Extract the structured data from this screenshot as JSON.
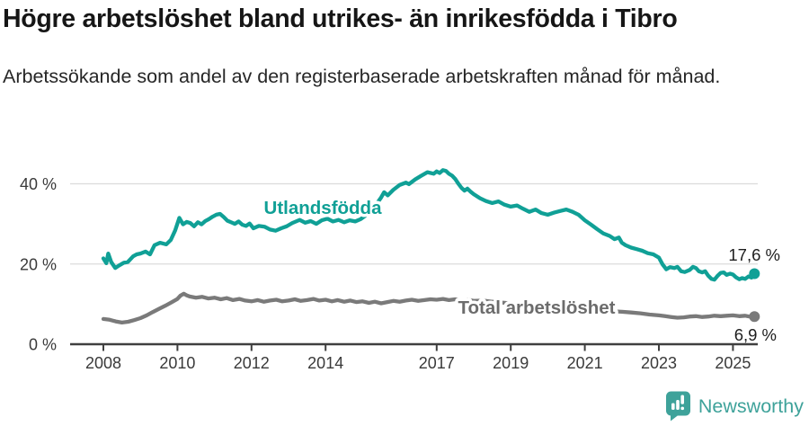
{
  "header": {
    "title": "Högre arbetslöshet bland utrikes- än inrikesfödda i Tibro",
    "subtitle": "Arbetssökande som andel av den registerbaserade arbetskraften månad för månad."
  },
  "colors": {
    "teal_line": "#10A096",
    "gray_line": "#7A7A7A",
    "gray_label": "#6C6C6C",
    "grid": "#DBDBDB",
    "axis": "#3F3F3F",
    "tick_text": "#3A3A3A",
    "value_text": "#1D1D1D",
    "logo_teal": "#3EA29A",
    "background": "#FFFFFF"
  },
  "chart_data": {
    "type": "line",
    "title": "Högre arbetslöshet bland utrikes- än inrikesfödda i Tibro",
    "xlabel": "",
    "ylabel": "",
    "x_ticks": [
      2008,
      2010,
      2012,
      2014,
      2017,
      2019,
      2021,
      2023,
      2025
    ],
    "y_ticks": [
      0,
      20,
      40
    ],
    "y_tick_suffix": " %",
    "xlim": [
      2007.1,
      2026.1
    ],
    "ylim": [
      0,
      45
    ],
    "grid": "horizontal",
    "legend_position": "inline-labels",
    "series": [
      {
        "name": "Utlandsfödda",
        "color": "#10A096",
        "end_label": "17,6 %",
        "end_value": 17.6,
        "points": [
          [
            2008.0,
            21.4
          ],
          [
            2008.08,
            20.2
          ],
          [
            2008.13,
            22.6
          ],
          [
            2008.21,
            20.5
          ],
          [
            2008.32,
            19.0
          ],
          [
            2008.42,
            19.6
          ],
          [
            2008.55,
            20.3
          ],
          [
            2008.66,
            20.5
          ],
          [
            2008.8,
            21.9
          ],
          [
            2008.9,
            22.4
          ],
          [
            2009.0,
            22.6
          ],
          [
            2009.14,
            23.1
          ],
          [
            2009.26,
            22.4
          ],
          [
            2009.38,
            24.7
          ],
          [
            2009.53,
            25.3
          ],
          [
            2009.7,
            24.9
          ],
          [
            2009.82,
            26.0
          ],
          [
            2009.94,
            28.4
          ],
          [
            2010.05,
            31.5
          ],
          [
            2010.15,
            29.9
          ],
          [
            2010.25,
            30.5
          ],
          [
            2010.35,
            30.2
          ],
          [
            2010.45,
            29.4
          ],
          [
            2010.55,
            30.4
          ],
          [
            2010.65,
            29.9
          ],
          [
            2010.75,
            30.7
          ],
          [
            2010.85,
            31.2
          ],
          [
            2010.95,
            31.8
          ],
          [
            2011.05,
            32.3
          ],
          [
            2011.15,
            32.5
          ],
          [
            2011.25,
            31.7
          ],
          [
            2011.35,
            30.8
          ],
          [
            2011.45,
            30.4
          ],
          [
            2011.55,
            30.0
          ],
          [
            2011.65,
            30.6
          ],
          [
            2011.75,
            29.8
          ],
          [
            2011.85,
            29.5
          ],
          [
            2011.95,
            30.1
          ],
          [
            2012.05,
            28.9
          ],
          [
            2012.2,
            29.5
          ],
          [
            2012.35,
            29.3
          ],
          [
            2012.5,
            28.6
          ],
          [
            2012.65,
            28.3
          ],
          [
            2012.8,
            28.9
          ],
          [
            2012.95,
            29.4
          ],
          [
            2013.1,
            30.2
          ],
          [
            2013.3,
            31.0
          ],
          [
            2013.45,
            30.3
          ],
          [
            2013.6,
            30.7
          ],
          [
            2013.75,
            30.0
          ],
          [
            2013.9,
            30.9
          ],
          [
            2014.05,
            31.3
          ],
          [
            2014.2,
            30.6
          ],
          [
            2014.35,
            31.0
          ],
          [
            2014.5,
            30.4
          ],
          [
            2014.65,
            30.9
          ],
          [
            2014.8,
            30.6
          ],
          [
            2014.95,
            31.2
          ],
          [
            2015.1,
            32.2
          ],
          [
            2015.25,
            33.6
          ],
          [
            2015.4,
            35.3
          ],
          [
            2015.5,
            36.6
          ],
          [
            2015.58,
            37.9
          ],
          [
            2015.68,
            37.1
          ],
          [
            2015.83,
            38.5
          ],
          [
            2016.0,
            39.7
          ],
          [
            2016.17,
            40.3
          ],
          [
            2016.25,
            39.9
          ],
          [
            2016.42,
            41.1
          ],
          [
            2016.58,
            42.0
          ],
          [
            2016.75,
            42.9
          ],
          [
            2016.92,
            42.5
          ],
          [
            2017.0,
            43.1
          ],
          [
            2017.08,
            42.7
          ],
          [
            2017.17,
            43.4
          ],
          [
            2017.25,
            43.2
          ],
          [
            2017.33,
            42.5
          ],
          [
            2017.42,
            42.0
          ],
          [
            2017.5,
            41.2
          ],
          [
            2017.58,
            40.1
          ],
          [
            2017.67,
            39.0
          ],
          [
            2017.75,
            38.3
          ],
          [
            2017.83,
            38.8
          ],
          [
            2017.92,
            38.0
          ],
          [
            2018.0,
            37.4
          ],
          [
            2018.17,
            36.4
          ],
          [
            2018.33,
            35.7
          ],
          [
            2018.5,
            35.2
          ],
          [
            2018.67,
            35.6
          ],
          [
            2018.83,
            34.8
          ],
          [
            2019.0,
            34.3
          ],
          [
            2019.17,
            34.6
          ],
          [
            2019.33,
            33.8
          ],
          [
            2019.5,
            33.0
          ],
          [
            2019.67,
            33.6
          ],
          [
            2019.83,
            32.7
          ],
          [
            2020.0,
            32.3
          ],
          [
            2020.17,
            32.8
          ],
          [
            2020.33,
            33.2
          ],
          [
            2020.5,
            33.6
          ],
          [
            2020.67,
            33.0
          ],
          [
            2020.83,
            32.3
          ],
          [
            2021.0,
            30.9
          ],
          [
            2021.17,
            29.8
          ],
          [
            2021.33,
            28.7
          ],
          [
            2021.5,
            27.6
          ],
          [
            2021.67,
            27.0
          ],
          [
            2021.8,
            26.2
          ],
          [
            2021.92,
            26.6
          ],
          [
            2022.0,
            25.3
          ],
          [
            2022.1,
            24.7
          ],
          [
            2022.25,
            24.1
          ],
          [
            2022.4,
            23.7
          ],
          [
            2022.55,
            23.3
          ],
          [
            2022.7,
            22.7
          ],
          [
            2022.85,
            22.4
          ],
          [
            2023.0,
            21.6
          ],
          [
            2023.1,
            19.9
          ],
          [
            2023.2,
            18.7
          ],
          [
            2023.3,
            19.2
          ],
          [
            2023.42,
            19.0
          ],
          [
            2023.5,
            19.3
          ],
          [
            2023.6,
            18.2
          ],
          [
            2023.7,
            18.0
          ],
          [
            2023.83,
            18.5
          ],
          [
            2023.92,
            19.3
          ],
          [
            2024.0,
            19.0
          ],
          [
            2024.08,
            18.2
          ],
          [
            2024.17,
            17.9
          ],
          [
            2024.25,
            18.2
          ],
          [
            2024.33,
            17.1
          ],
          [
            2024.42,
            16.3
          ],
          [
            2024.5,
            16.1
          ],
          [
            2024.58,
            17.0
          ],
          [
            2024.67,
            17.8
          ],
          [
            2024.75,
            17.9
          ],
          [
            2024.83,
            17.3
          ],
          [
            2024.92,
            17.6
          ],
          [
            2025.0,
            17.4
          ],
          [
            2025.08,
            16.7
          ],
          [
            2025.17,
            16.2
          ],
          [
            2025.25,
            16.5
          ],
          [
            2025.33,
            16.3
          ],
          [
            2025.42,
            16.9
          ],
          [
            2025.5,
            16.6
          ],
          [
            2025.58,
            17.6
          ]
        ]
      },
      {
        "name": "Total arbetslöshet",
        "color": "#7A7A7A",
        "end_label": "6,9 %",
        "end_value": 6.9,
        "points": [
          [
            2008.0,
            6.3
          ],
          [
            2008.17,
            6.1
          ],
          [
            2008.33,
            5.7
          ],
          [
            2008.5,
            5.4
          ],
          [
            2008.67,
            5.6
          ],
          [
            2008.83,
            6.0
          ],
          [
            2009.0,
            6.5
          ],
          [
            2009.17,
            7.2
          ],
          [
            2009.33,
            8.0
          ],
          [
            2009.5,
            8.8
          ],
          [
            2009.67,
            9.6
          ],
          [
            2009.83,
            10.4
          ],
          [
            2010.0,
            11.3
          ],
          [
            2010.08,
            12.1
          ],
          [
            2010.17,
            12.6
          ],
          [
            2010.25,
            12.2
          ],
          [
            2010.33,
            11.9
          ],
          [
            2010.5,
            11.6
          ],
          [
            2010.67,
            11.8
          ],
          [
            2010.83,
            11.4
          ],
          [
            2011.0,
            11.6
          ],
          [
            2011.17,
            11.2
          ],
          [
            2011.33,
            11.5
          ],
          [
            2011.5,
            11.0
          ],
          [
            2011.67,
            11.3
          ],
          [
            2011.83,
            10.9
          ],
          [
            2012.0,
            10.7
          ],
          [
            2012.17,
            11.0
          ],
          [
            2012.33,
            10.6
          ],
          [
            2012.5,
            10.9
          ],
          [
            2012.67,
            11.1
          ],
          [
            2012.83,
            10.7
          ],
          [
            2013.0,
            10.9
          ],
          [
            2013.17,
            11.2
          ],
          [
            2013.33,
            10.8
          ],
          [
            2013.5,
            11.0
          ],
          [
            2013.67,
            11.3
          ],
          [
            2013.83,
            10.9
          ],
          [
            2014.0,
            11.1
          ],
          [
            2014.17,
            10.7
          ],
          [
            2014.33,
            11.0
          ],
          [
            2014.5,
            10.6
          ],
          [
            2014.67,
            10.9
          ],
          [
            2014.83,
            10.5
          ],
          [
            2015.0,
            10.7
          ],
          [
            2015.17,
            10.3
          ],
          [
            2015.33,
            10.6
          ],
          [
            2015.5,
            10.2
          ],
          [
            2015.67,
            10.5
          ],
          [
            2015.83,
            10.8
          ],
          [
            2016.0,
            10.6
          ],
          [
            2016.17,
            10.9
          ],
          [
            2016.33,
            11.1
          ],
          [
            2016.5,
            10.8
          ],
          [
            2016.67,
            11.0
          ],
          [
            2016.83,
            11.2
          ],
          [
            2017.0,
            11.1
          ],
          [
            2017.17,
            11.3
          ],
          [
            2017.33,
            11.0
          ],
          [
            2017.5,
            11.2
          ],
          [
            2017.67,
            10.9
          ],
          [
            2017.83,
            11.1
          ],
          [
            2018.0,
            10.8
          ],
          [
            2018.25,
            10.9
          ],
          [
            2018.5,
            10.6
          ],
          [
            2018.75,
            10.4
          ],
          [
            2019.0,
            10.2
          ],
          [
            2019.25,
            10.0
          ],
          [
            2019.5,
            9.8
          ],
          [
            2019.75,
            9.6
          ],
          [
            2020.0,
            9.5
          ],
          [
            2020.25,
            9.3
          ],
          [
            2020.5,
            9.2
          ],
          [
            2020.75,
            9.0
          ],
          [
            2021.0,
            8.8
          ],
          [
            2021.25,
            8.6
          ],
          [
            2021.5,
            8.4
          ],
          [
            2021.75,
            8.2
          ],
          [
            2022.0,
            8.1
          ],
          [
            2022.25,
            7.9
          ],
          [
            2022.5,
            7.7
          ],
          [
            2022.75,
            7.4
          ],
          [
            2023.0,
            7.2
          ],
          [
            2023.17,
            7.0
          ],
          [
            2023.33,
            6.8
          ],
          [
            2023.5,
            6.6
          ],
          [
            2023.67,
            6.7
          ],
          [
            2023.83,
            6.9
          ],
          [
            2024.0,
            7.0
          ],
          [
            2024.17,
            6.8
          ],
          [
            2024.33,
            6.9
          ],
          [
            2024.5,
            7.1
          ],
          [
            2024.67,
            7.0
          ],
          [
            2024.83,
            7.1
          ],
          [
            2025.0,
            7.2
          ],
          [
            2025.17,
            7.0
          ],
          [
            2025.33,
            7.1
          ],
          [
            2025.5,
            6.8
          ],
          [
            2025.58,
            6.9
          ]
        ]
      }
    ]
  },
  "logo": {
    "text": "Newsworthy",
    "icon": "newsworthy-bar-chart-bubble"
  }
}
